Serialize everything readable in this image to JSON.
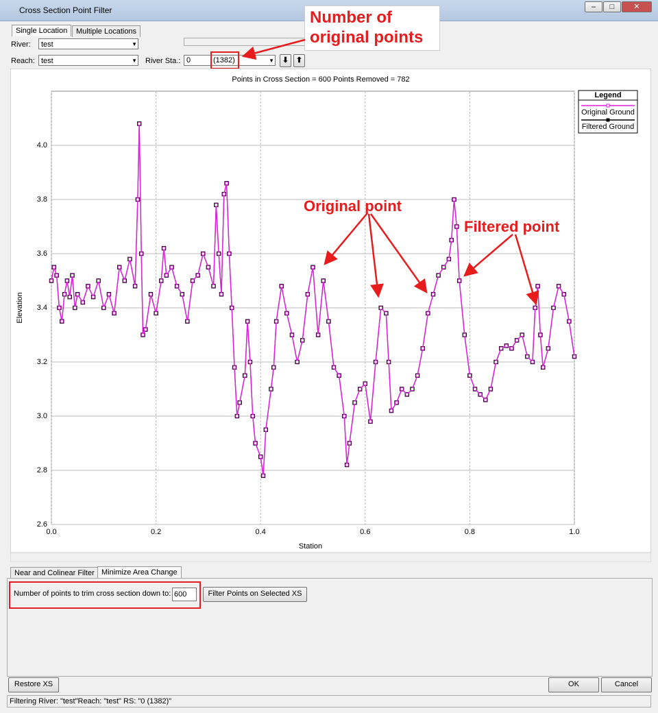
{
  "window": {
    "title": "Cross Section Point Filter"
  },
  "top_tabs": [
    "Single Location",
    "Multiple Locations"
  ],
  "fields": {
    "river_label": "River:",
    "river_value": "test",
    "reach_label": "Reach:",
    "reach_value": "test",
    "station_label": "River Sta.:",
    "station_value": "0",
    "station_count": "(1382)"
  },
  "chart_data": {
    "type": "line",
    "title": "Points in Cross Section = 600     Points Removed = 782",
    "x_label": "Station",
    "y_label": "Elevation",
    "legend_title": "Legend",
    "legend": "top-right",
    "grid": true,
    "xlim": [
      0,
      1
    ],
    "xticks": [
      {
        "value": 0,
        "label": "0.0"
      },
      0.2,
      0.4,
      0.6,
      0.8,
      {
        "value": 1,
        "label": "1.0"
      }
    ],
    "ylim": [
      2.6,
      4.2
    ],
    "yticks": [
      2.6,
      2.8,
      {
        "value": 3,
        "label": "3.0"
      },
      3.2,
      3.4,
      3.6,
      3.8,
      {
        "value": 4,
        "label": "4.0"
      }
    ],
    "x": [
      0,
      0.005,
      0.01,
      0.015,
      0.02,
      0.025,
      0.03,
      0.035,
      0.04,
      0.045,
      0.05,
      0.06,
      0.07,
      0.08,
      0.09,
      0.1,
      0.11,
      0.12,
      0.13,
      0.14,
      0.15,
      0.16,
      0.165,
      0.168,
      0.172,
      0.175,
      0.18,
      0.19,
      0.2,
      0.21,
      0.215,
      0.22,
      0.23,
      0.24,
      0.25,
      0.26,
      0.27,
      0.28,
      0.29,
      0.3,
      0.31,
      0.315,
      0.32,
      0.325,
      0.33,
      0.335,
      0.34,
      0.345,
      0.35,
      0.355,
      0.36,
      0.37,
      0.375,
      0.38,
      0.385,
      0.39,
      0.4,
      0.405,
      0.41,
      0.42,
      0.425,
      0.43,
      0.44,
      0.45,
      0.46,
      0.47,
      0.48,
      0.49,
      0.5,
      0.51,
      0.52,
      0.53,
      0.54,
      0.55,
      0.56,
      0.565,
      0.57,
      0.58,
      0.59,
      0.6,
      0.61,
      0.62,
      0.63,
      0.64,
      0.645,
      0.65,
      0.66,
      0.67,
      0.68,
      0.69,
      0.7,
      0.71,
      0.72,
      0.73,
      0.74,
      0.75,
      0.76,
      0.765,
      0.77,
      0.775,
      0.78,
      0.79,
      0.8,
      0.81,
      0.82,
      0.83,
      0.84,
      0.85,
      0.86,
      0.87,
      0.88,
      0.89,
      0.9,
      0.91,
      0.92,
      0.925,
      0.93,
      0.935,
      0.94,
      0.95,
      0.96,
      0.97,
      0.98,
      0.99,
      1
    ],
    "series": [
      {
        "name": "Original Ground",
        "color": "#e020e0",
        "values": [
          3.5,
          3.55,
          3.52,
          3.4,
          3.35,
          3.45,
          3.5,
          3.44,
          3.52,
          3.4,
          3.45,
          3.42,
          3.48,
          3.44,
          3.5,
          3.4,
          3.45,
          3.38,
          3.55,
          3.5,
          3.58,
          3.48,
          3.8,
          4.08,
          3.6,
          3.3,
          3.32,
          3.45,
          3.38,
          3.5,
          3.62,
          3.52,
          3.55,
          3.48,
          3.45,
          3.35,
          3.5,
          3.52,
          3.6,
          3.55,
          3.48,
          3.78,
          3.6,
          3.45,
          3.82,
          3.86,
          3.6,
          3.4,
          3.18,
          3.0,
          3.05,
          3.15,
          3.35,
          3.2,
          3.0,
          2.9,
          2.85,
          2.78,
          2.95,
          3.1,
          3.18,
          3.35,
          3.48,
          3.38,
          3.3,
          3.2,
          3.28,
          3.45,
          3.55,
          3.3,
          3.5,
          3.35,
          3.18,
          3.15,
          3.0,
          2.82,
          2.9,
          3.05,
          3.1,
          3.12,
          2.98,
          3.2,
          3.4,
          3.38,
          3.2,
          3.02,
          3.05,
          3.1,
          3.08,
          3.1,
          3.15,
          3.25,
          3.38,
          3.45,
          3.52,
          3.55,
          3.58,
          3.65,
          3.8,
          3.7,
          3.5,
          3.3,
          3.15,
          3.1,
          3.08,
          3.06,
          3.1,
          3.2,
          3.25,
          3.26,
          3.25,
          3.28,
          3.3,
          3.22,
          3.2,
          3.4,
          3.48,
          3.3,
          3.18,
          3.25,
          3.4,
          3.48,
          3.45,
          3.35,
          3.22
        ]
      },
      {
        "name": "Filtered Ground",
        "color": "#000000",
        "values": [
          3.5,
          3.55,
          3.52,
          3.4,
          3.35,
          3.45,
          3.5,
          3.44,
          3.52,
          3.4,
          3.45,
          3.42,
          3.48,
          3.44,
          3.5,
          3.4,
          3.45,
          3.38,
          3.55,
          3.5,
          3.58,
          3.48,
          3.8,
          4.08,
          3.6,
          3.3,
          3.32,
          3.45,
          3.38,
          3.5,
          3.62,
          3.52,
          3.55,
          3.48,
          3.45,
          3.35,
          3.5,
          3.52,
          3.6,
          3.55,
          3.48,
          3.78,
          3.6,
          3.45,
          3.82,
          3.86,
          3.6,
          3.4,
          3.18,
          3.0,
          3.05,
          3.15,
          3.35,
          3.2,
          3.0,
          2.9,
          2.85,
          2.78,
          2.95,
          3.1,
          3.18,
          3.35,
          3.48,
          3.38,
          3.3,
          3.2,
          3.28,
          3.45,
          3.55,
          3.3,
          3.5,
          3.35,
          3.18,
          3.15,
          3.0,
          2.82,
          2.9,
          3.05,
          3.1,
          3.12,
          2.98,
          3.2,
          3.4,
          3.38,
          3.2,
          3.02,
          3.05,
          3.1,
          3.08,
          3.1,
          3.15,
          3.25,
          3.38,
          3.45,
          3.52,
          3.55,
          3.58,
          3.65,
          3.8,
          3.7,
          3.5,
          3.3,
          3.15,
          3.1,
          3.08,
          3.06,
          3.1,
          3.2,
          3.25,
          3.26,
          3.25,
          3.28,
          3.3,
          3.22,
          3.2,
          3.4,
          3.48,
          3.3,
          3.18,
          3.25,
          3.4,
          3.48,
          3.45,
          3.35,
          3.22
        ]
      }
    ]
  },
  "bottom_tabs": [
    "Near and Colinear Filter",
    "Minimize Area Change"
  ],
  "trim": {
    "label": "Number of points to trim cross section down to:",
    "value": "600",
    "button": "Filter Points on Selected XS"
  },
  "buttons": {
    "restore": "Restore XS",
    "ok": "OK",
    "cancel": "Cancel"
  },
  "status": "Filtering River: \"test\"Reach: \"test\" RS: \"0          (1382)\"",
  "annotations": {
    "original_count": "Number of original points",
    "original_point": "Original point",
    "filtered_point": "Filtered point"
  }
}
